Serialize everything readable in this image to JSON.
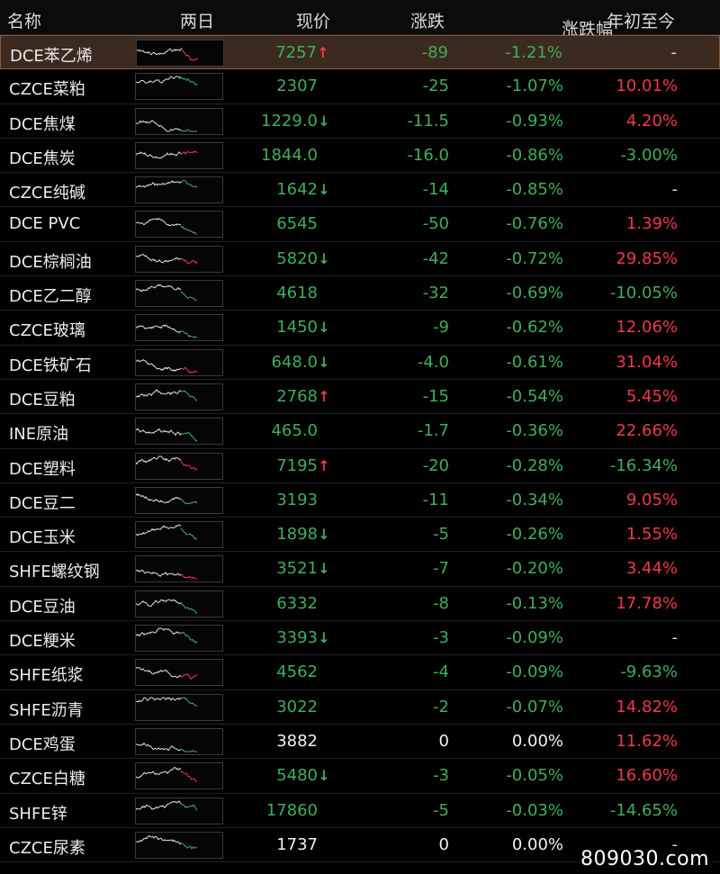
{
  "header": {
    "name": "名称",
    "spark": "两日",
    "price": "现价",
    "change": "涨跌",
    "pct": "涨跌幅",
    "ytd": "年初至今"
  },
  "colors": {
    "up": "#f0394a",
    "down": "#3fae5c",
    "flat": "#f2f2f2",
    "spark_line": "#e0e0e0"
  },
  "rows": [
    {
      "name": "DCE苯乙烯",
      "price": "7257",
      "arrow": "up",
      "change": "-89",
      "pct": "-1.21%",
      "ytd": "-",
      "price_tone": "down",
      "change_tone": "down",
      "ytd_tone": "dash",
      "selected": true
    },
    {
      "name": "CZCE菜粕",
      "price": "2307",
      "arrow": "",
      "change": "-25",
      "pct": "-1.07%",
      "ytd": "10.01%",
      "price_tone": "down",
      "change_tone": "down",
      "ytd_tone": "up"
    },
    {
      "name": "DCE焦煤",
      "price": "1229.0",
      "arrow": "down",
      "change": "-11.5",
      "pct": "-0.93%",
      "ytd": "4.20%",
      "price_tone": "down",
      "change_tone": "down",
      "ytd_tone": "up"
    },
    {
      "name": "DCE焦炭",
      "price": "1844.0",
      "arrow": "",
      "change": "-16.0",
      "pct": "-0.86%",
      "ytd": "-3.00%",
      "price_tone": "down",
      "change_tone": "down",
      "ytd_tone": "down"
    },
    {
      "name": "CZCE纯碱",
      "price": "1642",
      "arrow": "down",
      "change": "-14",
      "pct": "-0.85%",
      "ytd": "-",
      "price_tone": "down",
      "change_tone": "down",
      "ytd_tone": "dash"
    },
    {
      "name": "DCE PVC",
      "price": "6545",
      "arrow": "",
      "change": "-50",
      "pct": "-0.76%",
      "ytd": "1.39%",
      "price_tone": "down",
      "change_tone": "down",
      "ytd_tone": "up"
    },
    {
      "name": "DCE棕榈油",
      "price": "5820",
      "arrow": "down",
      "change": "-42",
      "pct": "-0.72%",
      "ytd": "29.85%",
      "price_tone": "down",
      "change_tone": "down",
      "ytd_tone": "up"
    },
    {
      "name": "DCE乙二醇",
      "price": "4618",
      "arrow": "",
      "change": "-32",
      "pct": "-0.69%",
      "ytd": "-10.05%",
      "price_tone": "down",
      "change_tone": "down",
      "ytd_tone": "down"
    },
    {
      "name": "CZCE玻璃",
      "price": "1450",
      "arrow": "down",
      "change": "-9",
      "pct": "-0.62%",
      "ytd": "12.06%",
      "price_tone": "down",
      "change_tone": "down",
      "ytd_tone": "up"
    },
    {
      "name": "DCE铁矿石",
      "price": "648.0",
      "arrow": "down",
      "change": "-4.0",
      "pct": "-0.61%",
      "ytd": "31.04%",
      "price_tone": "down",
      "change_tone": "down",
      "ytd_tone": "up"
    },
    {
      "name": "DCE豆粕",
      "price": "2768",
      "arrow": "up",
      "change": "-15",
      "pct": "-0.54%",
      "ytd": "5.45%",
      "price_tone": "down",
      "change_tone": "down",
      "ytd_tone": "up"
    },
    {
      "name": "INE原油",
      "price": "465.0",
      "arrow": "",
      "change": "-1.7",
      "pct": "-0.36%",
      "ytd": "22.66%",
      "price_tone": "down",
      "change_tone": "down",
      "ytd_tone": "up"
    },
    {
      "name": "DCE塑料",
      "price": "7195",
      "arrow": "up",
      "change": "-20",
      "pct": "-0.28%",
      "ytd": "-16.34%",
      "price_tone": "down",
      "change_tone": "down",
      "ytd_tone": "down"
    },
    {
      "name": "DCE豆二",
      "price": "3193",
      "arrow": "",
      "change": "-11",
      "pct": "-0.34%",
      "ytd": "9.05%",
      "price_tone": "down",
      "change_tone": "down",
      "ytd_tone": "up"
    },
    {
      "name": "DCE玉米",
      "price": "1898",
      "arrow": "down",
      "change": "-5",
      "pct": "-0.26%",
      "ytd": "1.55%",
      "price_tone": "down",
      "change_tone": "down",
      "ytd_tone": "up"
    },
    {
      "name": "SHFE螺纹钢",
      "price": "3521",
      "arrow": "down",
      "change": "-7",
      "pct": "-0.20%",
      "ytd": "3.44%",
      "price_tone": "down",
      "change_tone": "down",
      "ytd_tone": "up"
    },
    {
      "name": "DCE豆油",
      "price": "6332",
      "arrow": "",
      "change": "-8",
      "pct": "-0.13%",
      "ytd": "17.78%",
      "price_tone": "down",
      "change_tone": "down",
      "ytd_tone": "up"
    },
    {
      "name": "DCE粳米",
      "price": "3393",
      "arrow": "down",
      "change": "-3",
      "pct": "-0.09%",
      "ytd": "-",
      "price_tone": "down",
      "change_tone": "down",
      "ytd_tone": "dash"
    },
    {
      "name": "SHFE纸浆",
      "price": "4562",
      "arrow": "",
      "change": "-4",
      "pct": "-0.09%",
      "ytd": "-9.63%",
      "price_tone": "down",
      "change_tone": "down",
      "ytd_tone": "down"
    },
    {
      "name": "SHFE沥青",
      "price": "3022",
      "arrow": "",
      "change": "-2",
      "pct": "-0.07%",
      "ytd": "14.82%",
      "price_tone": "down",
      "change_tone": "down",
      "ytd_tone": "up"
    },
    {
      "name": "DCE鸡蛋",
      "price": "3882",
      "arrow": "",
      "change": "0",
      "pct": "0.00%",
      "ytd": "11.62%",
      "price_tone": "flat",
      "change_tone": "flat",
      "ytd_tone": "up"
    },
    {
      "name": "CZCE白糖",
      "price": "5480",
      "arrow": "down",
      "change": "-3",
      "pct": "-0.05%",
      "ytd": "16.60%",
      "price_tone": "down",
      "change_tone": "down",
      "ytd_tone": "up"
    },
    {
      "name": "SHFE锌",
      "price": "17860",
      "arrow": "",
      "change": "-5",
      "pct": "-0.03%",
      "ytd": "-14.65%",
      "price_tone": "down",
      "change_tone": "down",
      "ytd_tone": "down"
    },
    {
      "name": "CZCE尿素",
      "price": "1737",
      "arrow": "",
      "change": "0",
      "pct": "0.00%",
      "ytd": "-",
      "price_tone": "flat",
      "change_tone": "flat",
      "ytd_tone": "dash"
    }
  ],
  "watermark": "809030.com"
}
